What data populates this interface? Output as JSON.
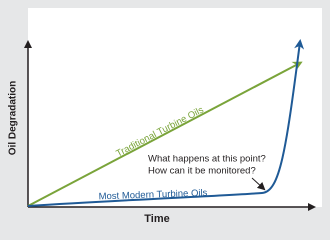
{
  "axes": {
    "x_label": "Time",
    "y_label": "Oil Degradation"
  },
  "curves": [
    {
      "label": "Traditional Turbine Oils"
    },
    {
      "label": "Most Modern Turbine Oils"
    }
  ],
  "annotation": {
    "lines": [
      "What happens at this point?",
      "How can it be monitored?"
    ]
  }
}
